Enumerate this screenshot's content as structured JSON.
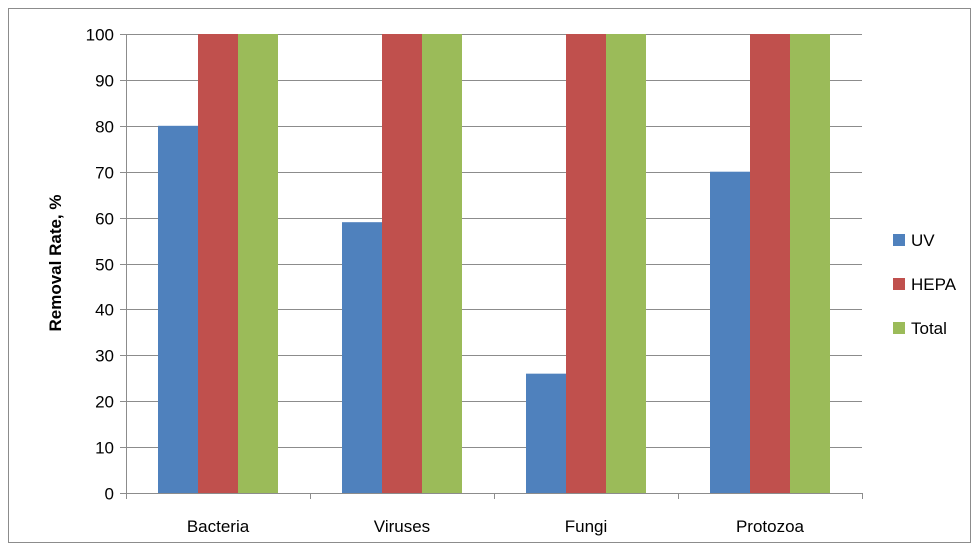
{
  "chart_data": {
    "type": "bar",
    "title": "",
    "xlabel": "",
    "ylabel": "Removal Rate, %",
    "ylim": [
      0,
      100
    ],
    "yticks": [
      0,
      10,
      20,
      30,
      40,
      50,
      60,
      70,
      80,
      90,
      100
    ],
    "grid": "horizontal",
    "legend_position": "right",
    "categories": [
      "Bacteria",
      "Viruses",
      "Fungi",
      "Protozoa"
    ],
    "series": [
      {
        "name": "UV",
        "color": "#4F81BD",
        "values": [
          80,
          59,
          26,
          70
        ]
      },
      {
        "name": "HEPA",
        "color": "#C0504D",
        "values": [
          100,
          100,
          100,
          100
        ]
      },
      {
        "name": "Total",
        "color": "#9BBB59",
        "values": [
          100,
          100,
          100,
          100
        ]
      }
    ]
  }
}
